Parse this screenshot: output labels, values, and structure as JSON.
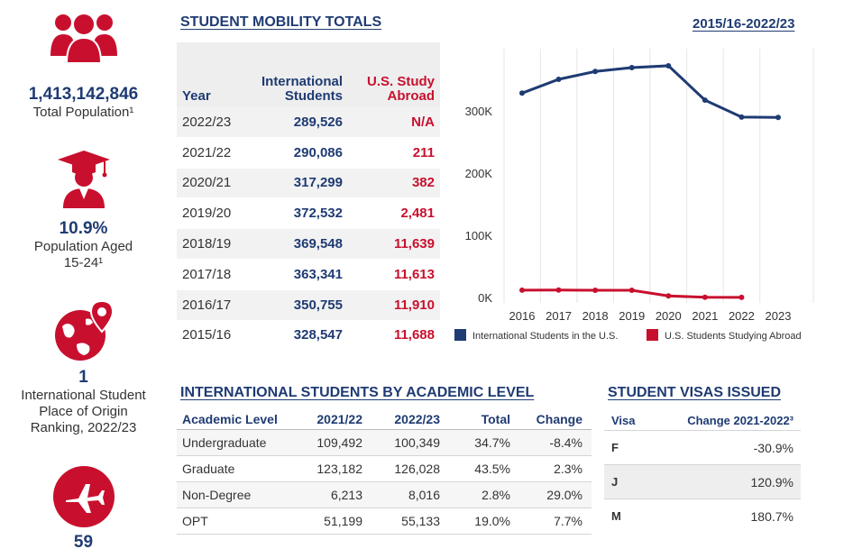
{
  "left_stats": {
    "population": {
      "value": "1,413,142,846",
      "label": "Total Population¹"
    },
    "aged": {
      "value": "10.9%",
      "label_line1": "Population Aged",
      "label_line2": "15-24¹"
    },
    "ranking": {
      "value": "1",
      "label_line1": "International Student",
      "label_line2": "Place of Origin",
      "label_line3": "Ranking, 2022/23"
    },
    "fourth": {
      "value": "59"
    }
  },
  "mobility": {
    "title": "STUDENT MOBILITY TOTALS",
    "range": "2015/16-2022/23",
    "headers": {
      "year": "Year",
      "intl_line1": "International",
      "intl_line2": "Students",
      "abroad_line1": "U.S. Study",
      "abroad_line2": "Abroad"
    },
    "rows": [
      {
        "year": "2022/23",
        "intl": "289,526",
        "abroad": "N/A"
      },
      {
        "year": "2021/22",
        "intl": "290,086",
        "abroad": "211"
      },
      {
        "year": "2020/21",
        "intl": "317,299",
        "abroad": "382"
      },
      {
        "year": "2019/20",
        "intl": "372,532",
        "abroad": "2,481"
      },
      {
        "year": "2018/19",
        "intl": "369,548",
        "abroad": "11,639"
      },
      {
        "year": "2017/18",
        "intl": "363,341",
        "abroad": "11,613"
      },
      {
        "year": "2016/17",
        "intl": "350,755",
        "abroad": "11,910"
      },
      {
        "year": "2015/16",
        "intl": "328,547",
        "abroad": "11,688"
      }
    ]
  },
  "chart_data": {
    "type": "line",
    "x": [
      2016,
      2017,
      2018,
      2019,
      2020,
      2021,
      2022,
      2023
    ],
    "y_ticks": [
      "0K",
      "100K",
      "200K",
      "300K"
    ],
    "ylim": [
      0,
      400000
    ],
    "grid": "vertical",
    "legend_placement": "bottom",
    "series": [
      {
        "name": "International Students in the U.S.",
        "color": "#1f3b73",
        "values": [
          328547,
          350755,
          363341,
          369548,
          372532,
          317299,
          290086,
          289526
        ]
      },
      {
        "name": "U.S. Students Studying Abroad",
        "color": "#c8102e",
        "values": [
          11688,
          11910,
          11613,
          11639,
          2481,
          382,
          211,
          null
        ]
      }
    ]
  },
  "academic": {
    "title": "INTERNATIONAL STUDENTS BY ACADEMIC LEVEL",
    "headers": [
      "Academic Level",
      "2021/22",
      "2022/23",
      "Total",
      "Change"
    ],
    "rows": [
      [
        "Undergraduate",
        "109,492",
        "100,349",
        "34.7%",
        "-8.4%"
      ],
      [
        "Graduate",
        "123,182",
        "126,028",
        "43.5%",
        "2.3%"
      ],
      [
        "Non-Degree",
        "6,213",
        "8,016",
        "2.8%",
        "29.0%"
      ],
      [
        "OPT",
        "51,199",
        "55,133",
        "19.0%",
        "7.7%"
      ]
    ]
  },
  "visas": {
    "title": "STUDENT VISAS ISSUED",
    "headers": {
      "visa": "Visa",
      "change": "Change 2021-2022³"
    },
    "rows": [
      {
        "visa": "F",
        "change": "-30.9%"
      },
      {
        "visa": "J",
        "change": "120.9%"
      },
      {
        "visa": "M",
        "change": "180.7%"
      }
    ]
  },
  "colors": {
    "navy": "#1f3b73",
    "red": "#c8102e"
  }
}
